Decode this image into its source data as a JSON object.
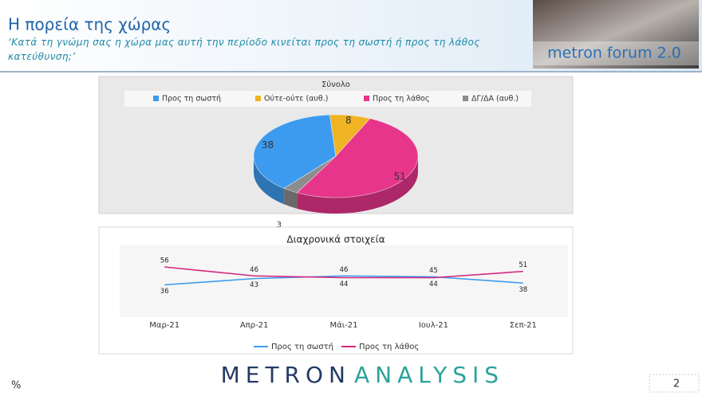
{
  "header": {
    "title": "Η πορεία της χώρας",
    "subtitle": "‘Κατά τη γνώμη σας η χώρα μας αυτή την περίοδο κινείται προς τη σωστή ή προς τη λάθος κατεύθυνση;’",
    "logo": "metron forum 2.0"
  },
  "chart_data": [
    {
      "type": "pie",
      "title": "Σύνολο",
      "categories": [
        "Προς τη σωστή",
        "Ούτε-ούτε (αυθ.)",
        "Προς τη λάθος",
        "ΔΓ/ΔΑ (αυθ.)"
      ],
      "values": [
        38,
        8,
        51,
        3
      ],
      "colors": [
        "#3d9bef",
        "#f0b323",
        "#e6358a",
        "#8c8c8c"
      ],
      "legend": "top"
    },
    {
      "type": "line",
      "title": "Διαχρονικά στοιχεία",
      "categories": [
        "Μαρ-21",
        "Απρ-21",
        "Μάι-21",
        "Ιουλ-21",
        "Σεπ-21"
      ],
      "series": [
        {
          "name": "Προς τη σωστή",
          "color": "#3d9bef",
          "values": [
            36,
            43,
            46,
            45,
            38
          ]
        },
        {
          "name": "Προς τη λάθος",
          "color": "#d6267e",
          "values": [
            56,
            46,
            44,
            44,
            51
          ]
        }
      ],
      "ylim": [
        0,
        80
      ],
      "legend": "bottom"
    }
  ],
  "footer": {
    "unit": "%",
    "brand_a": "METRON",
    "brand_b": "ANALYSIS",
    "page": "2"
  }
}
